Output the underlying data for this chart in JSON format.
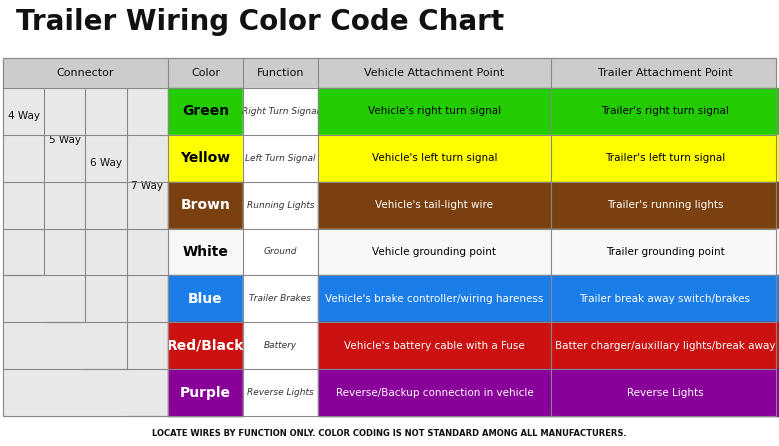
{
  "title": "Trailer Wiring Color Code Chart",
  "footer": "LOCATE WIRES BY FUNCTION ONLY. COLOR CODING IS NOT STANDARD AMONG ALL MANUFACTURERS.",
  "headers": [
    "Connector",
    "Color",
    "Function",
    "Vehicle Attachment Point",
    "Trailer Attachment Point"
  ],
  "rows": [
    {
      "color_name": "Green",
      "color_hex": "#22cc00",
      "function": "Right Turn Signal",
      "vehicle": "Vehicle's right turn signal",
      "trailer": "Trailer's right turn signal",
      "name_color": "#000000",
      "func_color": "#000000",
      "body_color": "#000000"
    },
    {
      "color_name": "Yellow",
      "color_hex": "#ffff00",
      "function": "Left Turn Signal",
      "vehicle": "Vehicle's left turn signal",
      "trailer": "Trailer's left turn signal",
      "name_color": "#000000",
      "func_color": "#555500",
      "body_color": "#000000"
    },
    {
      "color_name": "Brown",
      "color_hex": "#7a4010",
      "function": "Running Lights",
      "vehicle": "Vehicle's tail-light wire",
      "trailer": "Trailer's running lights",
      "name_color": "#ffffff",
      "func_color": "#cccccc",
      "body_color": "#ffffff"
    },
    {
      "color_name": "White",
      "color_hex": "#f8f8f8",
      "function": "Ground",
      "vehicle": "Vehicle grounding point",
      "trailer": "Trailer grounding point",
      "name_color": "#000000",
      "func_color": "#444444",
      "body_color": "#000000"
    },
    {
      "color_name": "Blue",
      "color_hex": "#1a7de8",
      "function": "Trailer Brakes",
      "vehicle": "Vehicle's brake controller/wiring hareness",
      "trailer": "Trailer break away switch/brakes",
      "name_color": "#ffffff",
      "func_color": "#ddddff",
      "body_color": "#ffffff"
    },
    {
      "color_name": "Red/Black",
      "color_hex": "#cc1111",
      "function": "Battery",
      "vehicle": "Vehicle's battery cable with a Fuse",
      "trailer": "Batter charger/auxillary lights/break away",
      "name_color": "#ffffff",
      "func_color": "#ffcccc",
      "body_color": "#ffffff"
    },
    {
      "color_name": "Purple",
      "color_hex": "#880099",
      "function": "Reverse Lights",
      "vehicle": "Reverse/Backup connection in vehicle",
      "trailer": "Reverse Lights",
      "name_color": "#ffffff",
      "func_color": "#ddccff",
      "body_color": "#ffffff"
    }
  ],
  "connector_ways": [
    "4 Way",
    "5 Way",
    "6 Way",
    "7 Way"
  ],
  "connector_spans": [
    4,
    5,
    6,
    7
  ],
  "bg_color": "#ffffff",
  "header_color": "#cccccc",
  "grid_color": "#888888",
  "title_fontsize": 20,
  "header_fontsize": 8,
  "color_name_fontsize": 10,
  "func_fontsize": 6.5,
  "body_fontsize": 7.5,
  "connector_fontsize": 7.5
}
